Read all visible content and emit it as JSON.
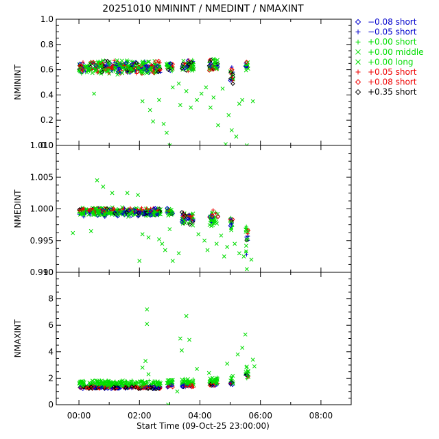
{
  "chart_data": {
    "type": "scatter",
    "title": "20251010 NMININT / NMEDINT / NMAXINT",
    "xlabel": "Start Time (09-Oct-25 23:00:00)",
    "x_ticks": [
      "00:00",
      "02:00",
      "04:00",
      "06:00",
      "08:00"
    ],
    "x_range_hours": [
      -0.75,
      9.0
    ],
    "legend": {
      "placement": "right",
      "entries": [
        {
          "label": "−0.08 short",
          "color": "#0000cc",
          "marker": "diamond"
        },
        {
          "label": "−0.05 short",
          "color": "#0000cc",
          "marker": "plus"
        },
        {
          "label": "+0.00 short",
          "color": "#00dd00",
          "marker": "plus"
        },
        {
          "label": "+0.00 middle",
          "color": "#00dd00",
          "marker": "cross"
        },
        {
          "label": "+0.00 long",
          "color": "#00dd00",
          "marker": "cross"
        },
        {
          "label": "+0.05 short",
          "color": "#ee0000",
          "marker": "plus"
        },
        {
          "label": "+0.08 short",
          "color": "#ee0000",
          "marker": "diamond"
        },
        {
          "label": "+0.35 short",
          "color": "#000000",
          "marker": "diamond"
        }
      ]
    },
    "panels": [
      {
        "ylabel": "NMININT",
        "ylim": [
          0.0,
          1.0
        ],
        "y_ticks": [
          "0.0",
          "0.2",
          "0.4",
          "0.6",
          "0.8",
          "1.0"
        ],
        "clusters": [
          {
            "x0": 0.0,
            "x1": 2.7,
            "y": 0.62,
            "spread": 0.06
          },
          {
            "x0": 2.9,
            "x1": 3.1,
            "y": 0.62,
            "spread": 0.05
          },
          {
            "x0": 3.4,
            "x1": 3.8,
            "y": 0.63,
            "spread": 0.05
          },
          {
            "x0": 4.3,
            "x1": 4.6,
            "y": 0.63,
            "spread": 0.06
          },
          {
            "x0": 5.0,
            "x1": 5.1,
            "y": 0.55,
            "spread": 0.08
          },
          {
            "x0": 5.5,
            "x1": 5.6,
            "y": 0.63,
            "spread": 0.04
          }
        ],
        "outliers": [
          {
            "x": 0.5,
            "y": 0.41
          },
          {
            "x": 2.1,
            "y": 0.35
          },
          {
            "x": 2.35,
            "y": 0.28
          },
          {
            "x": 2.45,
            "y": 0.19
          },
          {
            "x": 2.65,
            "y": 0.36
          },
          {
            "x": 2.8,
            "y": 0.17
          },
          {
            "x": 2.9,
            "y": 0.1
          },
          {
            "x": 3.0,
            "y": 0.0
          },
          {
            "x": 3.1,
            "y": 0.46
          },
          {
            "x": 3.3,
            "y": 0.49
          },
          {
            "x": 3.35,
            "y": 0.32
          },
          {
            "x": 3.55,
            "y": 0.43
          },
          {
            "x": 3.7,
            "y": 0.3
          },
          {
            "x": 3.9,
            "y": 0.36
          },
          {
            "x": 4.05,
            "y": 0.41
          },
          {
            "x": 4.2,
            "y": 0.46
          },
          {
            "x": 4.35,
            "y": 0.3
          },
          {
            "x": 4.45,
            "y": 0.38
          },
          {
            "x": 4.6,
            "y": 0.16
          },
          {
            "x": 4.75,
            "y": 0.45
          },
          {
            "x": 4.85,
            "y": 0.01
          },
          {
            "x": 4.95,
            "y": 0.24
          },
          {
            "x": 5.05,
            "y": 0.12
          },
          {
            "x": 5.2,
            "y": 0.07
          },
          {
            "x": 5.3,
            "y": 0.33
          },
          {
            "x": 5.4,
            "y": 0.36
          },
          {
            "x": 5.55,
            "y": 0.0
          },
          {
            "x": 5.75,
            "y": 0.35
          }
        ]
      },
      {
        "ylabel": "NMEDINT",
        "ylim": [
          0.99,
          1.01
        ],
        "y_ticks": [
          "0.990",
          "0.995",
          "1.000",
          "1.005",
          "1.010"
        ],
        "clusters": [
          {
            "x0": 0.0,
            "x1": 2.7,
            "y": 0.9995,
            "spread": 0.0008
          },
          {
            "x0": 2.9,
            "x1": 3.1,
            "y": 0.9995,
            "spread": 0.0007
          },
          {
            "x0": 3.4,
            "x1": 3.8,
            "y": 0.9985,
            "spread": 0.0012
          },
          {
            "x0": 4.3,
            "x1": 4.6,
            "y": 0.9985,
            "spread": 0.0015
          },
          {
            "x0": 5.0,
            "x1": 5.1,
            "y": 0.9975,
            "spread": 0.0015
          },
          {
            "x0": 5.5,
            "x1": 5.6,
            "y": 0.995,
            "spread": 0.0025
          }
        ],
        "outliers": [
          {
            "x": 0.6,
            "y": 1.0045
          },
          {
            "x": 0.8,
            "y": 1.0035
          },
          {
            "x": 1.1,
            "y": 1.0025
          },
          {
            "x": 1.6,
            "y": 1.0025
          },
          {
            "x": 1.95,
            "y": 1.0022
          },
          {
            "x": -0.2,
            "y": 0.9962
          },
          {
            "x": 0.4,
            "y": 0.9965
          },
          {
            "x": 2.0,
            "y": 0.9918
          },
          {
            "x": 2.1,
            "y": 0.996
          },
          {
            "x": 2.3,
            "y": 0.9955
          },
          {
            "x": 2.65,
            "y": 0.9952
          },
          {
            "x": 2.75,
            "y": 0.9945
          },
          {
            "x": 2.85,
            "y": 0.9935
          },
          {
            "x": 3.0,
            "y": 0.9968
          },
          {
            "x": 3.1,
            "y": 0.9918
          },
          {
            "x": 3.3,
            "y": 0.993
          },
          {
            "x": 3.95,
            "y": 0.996
          },
          {
            "x": 4.15,
            "y": 0.995
          },
          {
            "x": 4.25,
            "y": 0.9935
          },
          {
            "x": 4.55,
            "y": 0.9945
          },
          {
            "x": 4.7,
            "y": 0.9958
          },
          {
            "x": 4.8,
            "y": 0.9925
          },
          {
            "x": 4.9,
            "y": 0.994
          },
          {
            "x": 5.15,
            "y": 0.9945
          },
          {
            "x": 5.3,
            "y": 0.993
          },
          {
            "x": 5.45,
            "y": 0.9925
          },
          {
            "x": 5.7,
            "y": 0.992
          },
          {
            "x": 5.55,
            "y": 0.9905
          }
        ]
      },
      {
        "ylabel": "NMAXINT",
        "ylim": [
          0,
          10
        ],
        "y_ticks": [
          "0",
          "2",
          "4",
          "6",
          "8",
          "10"
        ],
        "clusters": [
          {
            "x0": 0.0,
            "x1": 2.7,
            "y": 1.6,
            "spread": 0.3
          },
          {
            "x0": 2.9,
            "x1": 3.1,
            "y": 1.7,
            "spread": 0.3
          },
          {
            "x0": 3.4,
            "x1": 3.8,
            "y": 1.7,
            "spread": 0.3
          },
          {
            "x0": 4.3,
            "x1": 4.6,
            "y": 1.8,
            "spread": 0.3
          },
          {
            "x0": 5.0,
            "x1": 5.1,
            "y": 1.9,
            "spread": 0.4
          },
          {
            "x0": 5.5,
            "x1": 5.6,
            "y": 2.5,
            "spread": 0.8
          }
        ],
        "outliers": [
          {
            "x": 2.25,
            "y": 7.2
          },
          {
            "x": 2.25,
            "y": 6.1
          },
          {
            "x": 2.2,
            "y": 3.3
          },
          {
            "x": 2.1,
            "y": 2.8
          },
          {
            "x": 2.3,
            "y": 2.3
          },
          {
            "x": 2.95,
            "y": 0.0
          },
          {
            "x": 3.25,
            "y": 1.0
          },
          {
            "x": 3.35,
            "y": 5.0
          },
          {
            "x": 3.4,
            "y": 4.1
          },
          {
            "x": 3.55,
            "y": 6.7
          },
          {
            "x": 3.65,
            "y": 4.9
          },
          {
            "x": 3.9,
            "y": 2.7
          },
          {
            "x": 4.3,
            "y": 2.4
          },
          {
            "x": 4.9,
            "y": 3.1
          },
          {
            "x": 5.25,
            "y": 3.8
          },
          {
            "x": 5.4,
            "y": 4.3
          },
          {
            "x": 5.5,
            "y": 5.3
          },
          {
            "x": 5.75,
            "y": 3.4
          },
          {
            "x": 5.6,
            "y": 2.1
          },
          {
            "x": 5.8,
            "y": 2.9
          }
        ]
      }
    ]
  }
}
